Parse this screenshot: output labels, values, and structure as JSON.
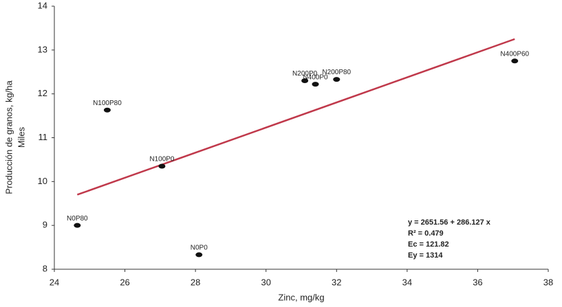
{
  "chart_data": {
    "type": "scatter",
    "xlabel": "Zinc, mg/kg",
    "ylabel": "Producción de granos, kg/ha",
    "ylabel2": "Miles",
    "xlim": [
      24,
      38
    ],
    "xticks": [
      24,
      26,
      28,
      30,
      32,
      34,
      36,
      38
    ],
    "ylim": [
      8,
      14
    ],
    "yticks": [
      8,
      9,
      10,
      11,
      12,
      13,
      14
    ],
    "color": "#111111",
    "points": [
      {
        "label": "N0P80",
        "x": 24.65,
        "y": 9.0
      },
      {
        "label": "N100P80",
        "x": 25.5,
        "y": 11.63
      },
      {
        "label": "N100P0",
        "x": 27.05,
        "y": 10.35
      },
      {
        "label": "N0P0",
        "x": 28.1,
        "y": 8.33
      },
      {
        "label": "N200P0",
        "x": 31.1,
        "y": 12.3
      },
      {
        "label": "N400P0",
        "x": 31.4,
        "y": 12.22
      },
      {
        "label": "N200P80",
        "x": 32.0,
        "y": 12.33
      },
      {
        "label": "N400P60",
        "x": 37.05,
        "y": 12.75
      }
    ],
    "trendline": {
      "color": "#c0394b",
      "x": [
        24.65,
        37.05
      ],
      "y": [
        9.7,
        13.25
      ]
    },
    "annotations": [
      "y  = 2651.56 + 286.127 x",
      "R² = 0.479",
      "Ec = 121.82",
      "Ey = 1314"
    ]
  }
}
